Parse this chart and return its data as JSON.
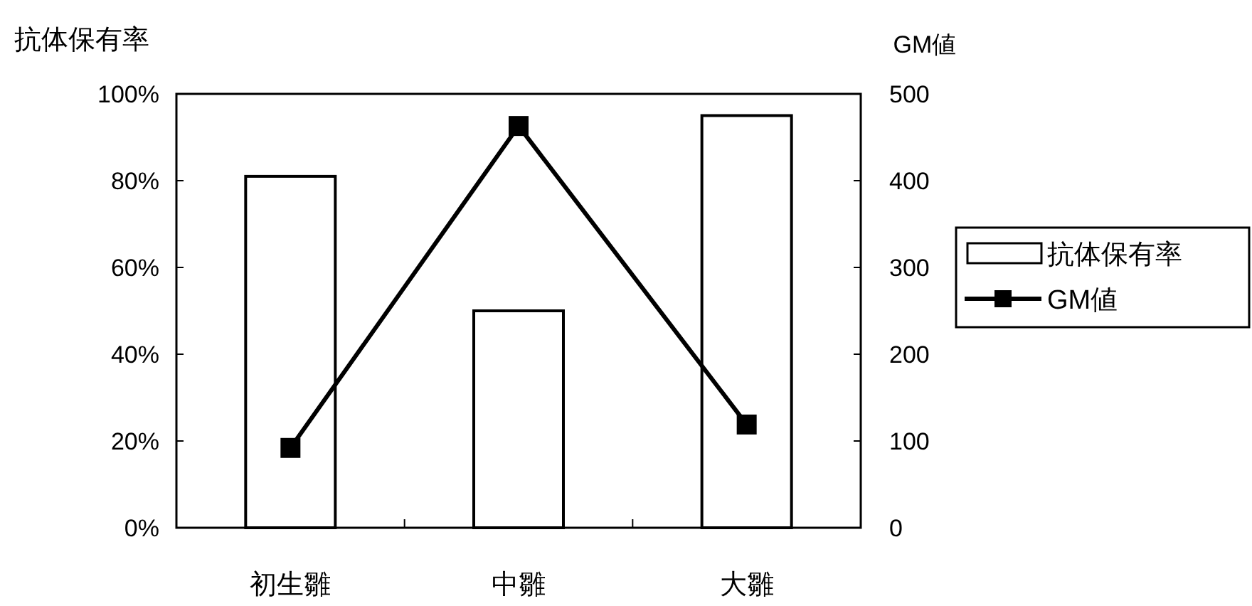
{
  "chart_data": {
    "type": "bar",
    "ylabel": "抗体保有率",
    "y2label": "GM値",
    "categories": [
      "初生雛",
      "中雛",
      "大雛"
    ],
    "ylim": [
      0,
      100
    ],
    "yticks": [
      {
        "value": 0,
        "label": "0%"
      },
      {
        "value": 20,
        "label": "20%"
      },
      {
        "value": 40,
        "label": "40%"
      },
      {
        "value": 60,
        "label": "60%"
      },
      {
        "value": 80,
        "label": "80%"
      },
      {
        "value": 100,
        "label": "100%"
      }
    ],
    "y2lim": [
      0,
      500
    ],
    "y2ticks": [
      0,
      100,
      200,
      300,
      400,
      500
    ],
    "series": [
      {
        "name": "抗体保有率",
        "color": "#ffffff",
        "values": [
          81,
          50,
          95
        ]
      },
      {
        "name": "GM値",
        "type": "line",
        "axis": "y2",
        "color": "#000000",
        "marker": "square",
        "values": [
          92,
          463,
          119
        ]
      }
    ],
    "legend": "right",
    "grid": false
  }
}
